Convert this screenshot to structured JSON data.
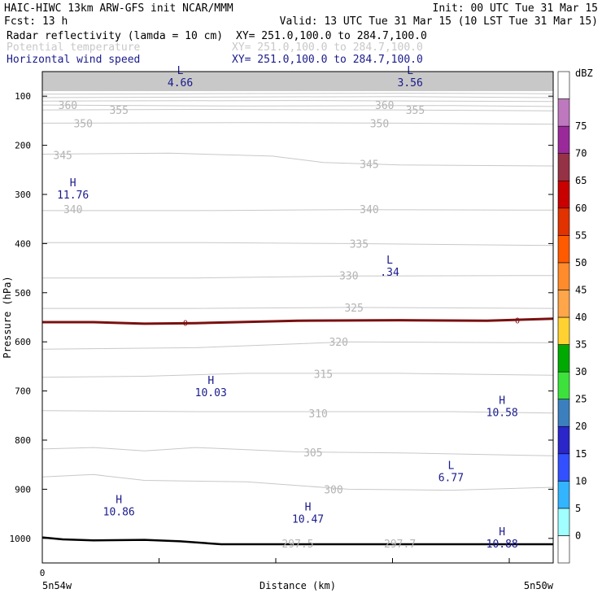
{
  "header": {
    "line1_left": "HAIC-HIWC 13km ARW-GFS init   NCAR/MMM",
    "line1_right": "Init: 00 UTC Tue 31 Mar 15",
    "line2_left": "Fcst:   13 h",
    "line2_right": "Valid: 13 UTC Tue 31 Mar 15 (10 LST Tue 31 Mar 15)",
    "fields": [
      {
        "name": "Radar reflectivity (lamda = 10 cm)",
        "xy": "XY= 251.0,100.0 to 284.7,100.0",
        "color": "#000000"
      },
      {
        "name": "Potential temperature",
        "xy": "XY= 251.0,100.0 to 284.7,100.0",
        "color": "#c8c8c8"
      },
      {
        "name": "Horizontal wind speed",
        "xy": "XY= 251.0,100.0 to 284.7,100.0",
        "color": "#1a1a8c"
      }
    ]
  },
  "chart_data": {
    "type": "line",
    "description_type": "vertical cross-section contour plot",
    "xlabel": "Distance (km)",
    "ylabel": "Pressure (hPa)",
    "x_start_label": "5n54w",
    "x_end_label": "5n50w",
    "x_zero_label": "0",
    "ylim": [
      1050,
      50
    ],
    "y_ticks": [
      100,
      200,
      300,
      400,
      500,
      600,
      700,
      800,
      900,
      1000
    ],
    "theta_labels": [
      {
        "text": "360",
        "x": 0.05,
        "p": 118
      },
      {
        "text": "355",
        "x": 0.15,
        "p": 128
      },
      {
        "text": "350",
        "x": 0.08,
        "p": 155
      },
      {
        "text": "345",
        "x": 0.04,
        "p": 220
      },
      {
        "text": "340",
        "x": 0.06,
        "p": 330
      },
      {
        "text": "360",
        "x": 0.67,
        "p": 118
      },
      {
        "text": "355",
        "x": 0.73,
        "p": 128
      },
      {
        "text": "350",
        "x": 0.66,
        "p": 155
      },
      {
        "text": "345",
        "x": 0.64,
        "p": 238
      },
      {
        "text": "340",
        "x": 0.64,
        "p": 330
      },
      {
        "text": "335",
        "x": 0.62,
        "p": 400
      },
      {
        "text": "330",
        "x": 0.6,
        "p": 465
      },
      {
        "text": "325",
        "x": 0.61,
        "p": 530
      },
      {
        "text": "320",
        "x": 0.58,
        "p": 600
      },
      {
        "text": "315",
        "x": 0.55,
        "p": 665
      },
      {
        "text": "310",
        "x": 0.54,
        "p": 745
      },
      {
        "text": "305",
        "x": 0.53,
        "p": 825
      },
      {
        "text": "300",
        "x": 0.57,
        "p": 900
      },
      {
        "text": "297.5",
        "x": 0.5,
        "p": 1010
      },
      {
        "text": "297.7",
        "x": 0.7,
        "p": 1010
      }
    ],
    "wind_extrema": [
      {
        "mark": "L",
        "value": "4.66",
        "x": 0.27,
        "p": 62
      },
      {
        "mark": "L",
        "value": "3.56",
        "x": 0.72,
        "p": 62
      },
      {
        "mark": "H",
        "value": "11.76",
        "x": 0.06,
        "p": 290
      },
      {
        "mark": "L",
        "value": ".34",
        "x": 0.68,
        "p": 447
      },
      {
        "mark": "H",
        "value": "10.03",
        "x": 0.33,
        "p": 692
      },
      {
        "mark": "H",
        "value": "10.58",
        "x": 0.9,
        "p": 733
      },
      {
        "mark": "L",
        "value": "6.77",
        "x": 0.8,
        "p": 865
      },
      {
        "mark": "H",
        "value": "10.86",
        "x": 0.15,
        "p": 935
      },
      {
        "mark": "H",
        "value": "10.47",
        "x": 0.52,
        "p": 950
      },
      {
        "mark": "H",
        "value": "10.88",
        "x": 0.9,
        "p": 1000
      }
    ],
    "zero_line_label": "0",
    "colorbar": {
      "title": "dBZ",
      "labels": [
        "0",
        "5",
        "10",
        "15",
        "20",
        "25",
        "30",
        "35",
        "40",
        "45",
        "50",
        "55",
        "60",
        "65",
        "70",
        "75"
      ],
      "colors": [
        "#ffffff",
        "#a0ffff",
        "#32b4ff",
        "#3250ff",
        "#2a26c9",
        "#3c7fbe",
        "#3ce13c",
        "#00aa00",
        "#ffd232",
        "#ffa54a",
        "#ff8b2a",
        "#ff5a00",
        "#e13200",
        "#c80000",
        "#963246",
        "#9a2a9a",
        "#be78be",
        "#ffffff"
      ]
    }
  }
}
